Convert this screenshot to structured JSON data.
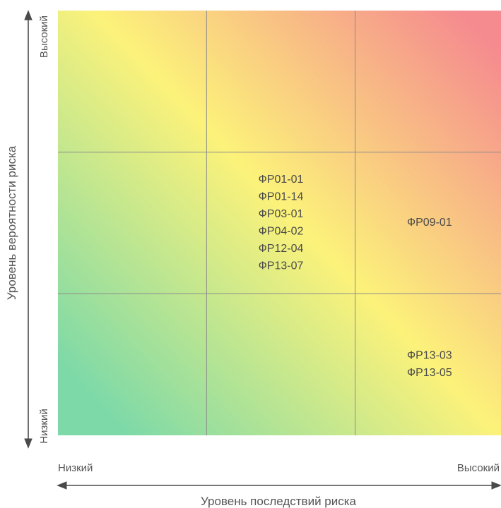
{
  "chart_data": {
    "type": "heatmap",
    "xlabel": "Уровень последствий риска",
    "ylabel": "Уровень вероятности риска",
    "x_low_label": "Низкий",
    "x_high_label": "Высокий",
    "y_low_label": "Низкий",
    "y_high_label": "Высокий",
    "grid": true,
    "rows": 3,
    "cols": 3,
    "gradient": {
      "low_color": "#7dd9a8",
      "mid_color": "#fcf27a",
      "high_color": "#f58a8f"
    },
    "cells": [
      {
        "row": 1,
        "col": 1,
        "items": [
          "ФР01-01",
          "ФР01-14",
          "ФР03-01",
          "ФР04-02",
          "ФР12-04",
          "ФР13-07"
        ]
      },
      {
        "row": 1,
        "col": 2,
        "items": [
          "ФР09-01"
        ]
      },
      {
        "row": 2,
        "col": 2,
        "items": [
          "ФР13-03",
          "ФР13-05"
        ]
      }
    ]
  }
}
